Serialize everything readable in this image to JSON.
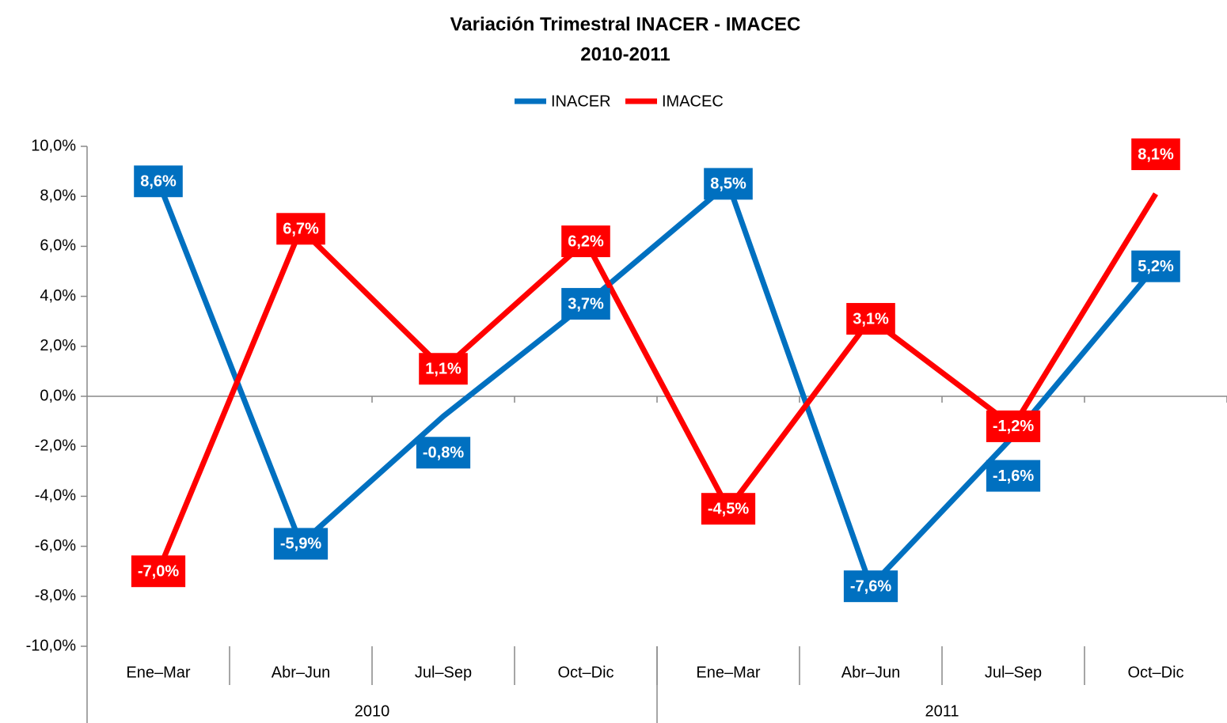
{
  "chart_data": {
    "type": "line",
    "title": "Variación Trimestral INACER - IMACEC",
    "subtitle": "2010-2011",
    "categories": [
      "Ene–Mar",
      "Abr–Jun",
      "Jul–Sep",
      "Oct–Dic",
      "Ene–Mar",
      "Abr–Jun",
      "Jul–Sep",
      "Oct–Dic"
    ],
    "groups": [
      "2010",
      "2011"
    ],
    "series": [
      {
        "name": "INACER",
        "color": "#0070c0",
        "values": [
          8.6,
          -5.9,
          -0.8,
          3.7,
          8.5,
          -7.6,
          -1.6,
          5.2
        ],
        "value_labels": [
          "8,6%",
          "-5,9%",
          "-0,8%",
          "3,7%",
          "8,5%",
          "-7,6%",
          "-1,6%",
          "5,2%"
        ]
      },
      {
        "name": "IMACEC",
        "color": "#ff0000",
        "values": [
          -7.0,
          6.7,
          1.1,
          6.2,
          -4.5,
          3.1,
          -1.2,
          8.1
        ],
        "value_labels": [
          "-7,0%",
          "6,7%",
          "1,1%",
          "6,2%",
          "-4,5%",
          "3,1%",
          "-1,2%",
          "8,1%"
        ]
      }
    ],
    "ylim": [
      -10,
      10
    ],
    "yticks": [
      {
        "value": -10,
        "label": "-10,0%"
      },
      {
        "value": -8,
        "label": "-8,0%"
      },
      {
        "value": -6,
        "label": "-6,0%"
      },
      {
        "value": -4,
        "label": "-4,0%"
      },
      {
        "value": -2,
        "label": "-2,0%"
      },
      {
        "value": 0,
        "label": "0,0%"
      },
      {
        "value": 2,
        "label": "2,0%"
      },
      {
        "value": 4,
        "label": "4,0%"
      },
      {
        "value": 6,
        "label": "6,0%"
      },
      {
        "value": 8,
        "label": "8,0%"
      },
      {
        "value": 10,
        "label": "10,0%"
      }
    ],
    "legend": "top"
  }
}
